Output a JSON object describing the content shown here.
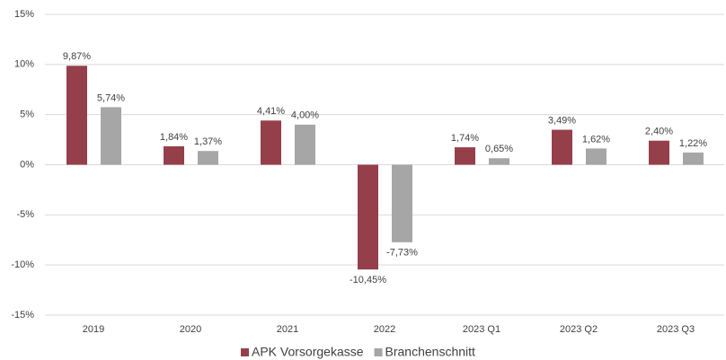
{
  "chart_data": {
    "type": "bar",
    "categories": [
      "2019",
      "2020",
      "2021",
      "2022",
      "2023 Q1",
      "2023 Q2",
      "2023 Q3"
    ],
    "series": [
      {
        "name": "APK Vorsorgekasse",
        "color": "#953f4a",
        "values": [
          9.87,
          1.84,
          4.41,
          -10.45,
          1.74,
          3.49,
          2.4
        ],
        "value_labels": [
          "9,87%",
          "1,84%",
          "4,41%",
          "-10,45%",
          "1,74%",
          "3,49%",
          "2,40%"
        ]
      },
      {
        "name": "Branchenschnitt",
        "color": "#a6a6a6",
        "values": [
          5.74,
          1.37,
          4.0,
          -7.73,
          0.65,
          1.62,
          1.22
        ],
        "value_labels": [
          "5,74%",
          "1,37%",
          "4,00%",
          "-7,73%",
          "0,65%",
          "1,62%",
          "1,22%"
        ]
      }
    ],
    "ylim": [
      -15,
      15
    ],
    "yticks": [
      {
        "value": -15,
        "label": "-15%"
      },
      {
        "value": -10,
        "label": "-10%"
      },
      {
        "value": -5,
        "label": "-5%"
      },
      {
        "value": 0,
        "label": "0%"
      },
      {
        "value": 5,
        "label": "5%"
      },
      {
        "value": 10,
        "label": "10%"
      },
      {
        "value": 15,
        "label": "15%"
      }
    ],
    "grid": true,
    "legend": "bottom"
  }
}
